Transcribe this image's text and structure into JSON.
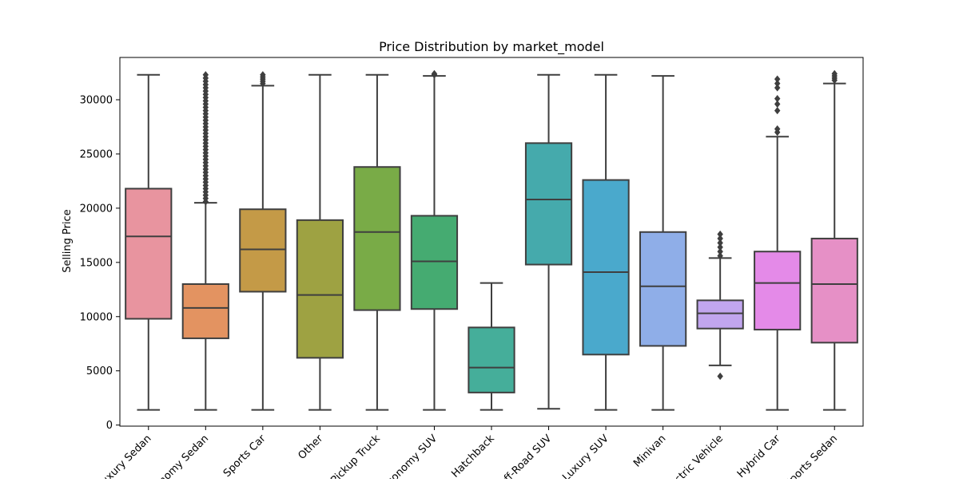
{
  "chart_data": {
    "type": "box",
    "title": "Price Distribution by market_model",
    "xlabel": "",
    "ylabel": "Selling Price",
    "ylim": [
      -100,
      33900
    ],
    "yticks": [
      0,
      5000,
      10000,
      15000,
      20000,
      25000,
      30000
    ],
    "grid": false,
    "legend": "none",
    "categories": [
      "Luxury Sedan",
      "Economy Sedan",
      "Sports Car",
      "Other",
      "Pickup Truck",
      "Economy SUV",
      "Hatchback",
      "Off-Road SUV",
      "Luxury SUV",
      "Minivan",
      "Electric Vehicle",
      "Hybrid Car",
      "Sports Sedan"
    ],
    "boxes": [
      {
        "category": "Luxury Sedan",
        "whisker_low": 1400,
        "q1": 9800,
        "median": 17400,
        "q3": 21800,
        "whisker_high": 32300,
        "outliers": [],
        "color": "#e8949f"
      },
      {
        "category": "Economy Sedan",
        "whisker_low": 1400,
        "q1": 8000,
        "median": 10800,
        "q3": 13000,
        "whisker_high": 20500,
        "outliers": [
          20600,
          20900,
          21200,
          21500,
          21800,
          22100,
          22400,
          22700,
          23000,
          23300,
          23600,
          23900,
          24200,
          24500,
          24800,
          25100,
          25400,
          25700,
          26000,
          26300,
          26600,
          26900,
          27200,
          27500,
          27800,
          28100,
          28400,
          28700,
          29000,
          29300,
          29600,
          29900,
          30200,
          30500,
          30800,
          31100,
          31400,
          31700,
          32000,
          32300
        ],
        "color": "#e39361"
      },
      {
        "category": "Sports Car",
        "whisker_low": 1400,
        "q1": 12300,
        "median": 16200,
        "q3": 19900,
        "whisker_high": 31300,
        "outliers": [
          31500,
          31700,
          31900,
          32100,
          32300
        ],
        "color": "#c49a47"
      },
      {
        "category": "Other",
        "whisker_low": 1400,
        "q1": 6200,
        "median": 12000,
        "q3": 18900,
        "whisker_high": 32300,
        "outliers": [],
        "color": "#9ea242"
      },
      {
        "category": "Pickup Truck",
        "whisker_low": 1400,
        "q1": 10600,
        "median": 17800,
        "q3": 23800,
        "whisker_high": 32300,
        "outliers": [],
        "color": "#79ab47"
      },
      {
        "category": "Economy SUV",
        "whisker_low": 1400,
        "q1": 10700,
        "median": 15100,
        "q3": 19300,
        "whisker_high": 32200,
        "outliers": [
          32300,
          32400
        ],
        "color": "#45ab71"
      },
      {
        "category": "Hatchback",
        "whisker_low": 1400,
        "q1": 3000,
        "median": 5300,
        "q3": 9000,
        "whisker_high": 13100,
        "outliers": [],
        "color": "#45ae9a"
      },
      {
        "category": "Off-Road SUV",
        "whisker_low": 1500,
        "q1": 14800,
        "median": 20800,
        "q3": 26000,
        "whisker_high": 32300,
        "outliers": [],
        "color": "#45aaac"
      },
      {
        "category": "Luxury SUV",
        "whisker_low": 1400,
        "q1": 6500,
        "median": 14100,
        "q3": 22600,
        "whisker_high": 32300,
        "outliers": [],
        "color": "#4aa9cc"
      },
      {
        "category": "Minivan",
        "whisker_low": 1400,
        "q1": 7300,
        "median": 12800,
        "q3": 17800,
        "whisker_high": 32200,
        "outliers": [],
        "color": "#8faee8"
      },
      {
        "category": "Electric Vehicle",
        "whisker_low": 5500,
        "q1": 8900,
        "median": 10300,
        "q3": 11500,
        "whisker_high": 15400,
        "outliers": [
          4500,
          15600,
          16000,
          16400,
          16800,
          17200,
          17600
        ],
        "color": "#c1a6ef"
      },
      {
        "category": "Hybrid Car",
        "whisker_low": 1400,
        "q1": 8800,
        "median": 13100,
        "q3": 16000,
        "whisker_high": 26600,
        "outliers": [
          27000,
          27300,
          29000,
          29600,
          30100,
          31100,
          31500,
          31900
        ],
        "color": "#e48ae8"
      },
      {
        "category": "Sports Sedan",
        "whisker_low": 1400,
        "q1": 7600,
        "median": 13000,
        "q3": 17200,
        "whisker_high": 31500,
        "outliers": [
          31800,
          32000,
          32200,
          32400
        ],
        "color": "#e690c6"
      }
    ]
  }
}
